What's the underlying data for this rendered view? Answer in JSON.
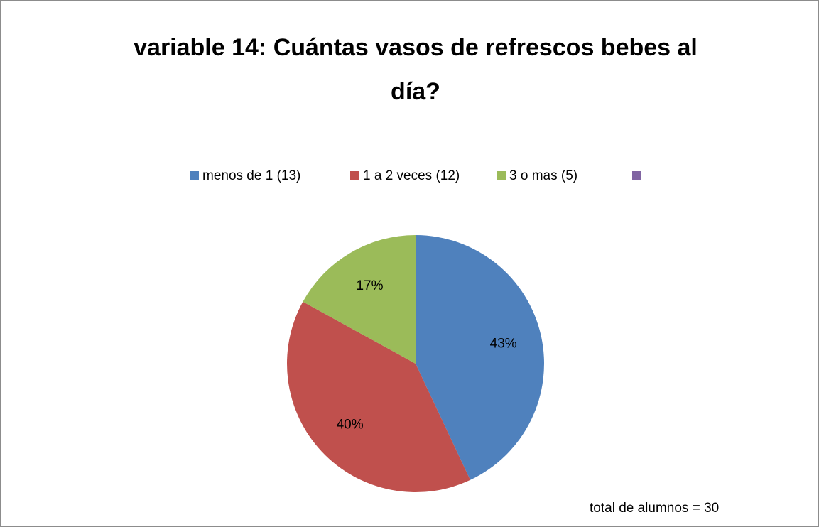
{
  "chart_data": {
    "type": "pie",
    "title": "variable 14: Cuántas vasos de refrescos bebes al día?",
    "categories": [
      "menos de 1 (13)",
      "1 a 2 veces (12)",
      "3 o mas (5)",
      null
    ],
    "values": [
      43,
      40,
      17,
      0
    ],
    "value_labels": [
      "43%",
      "40%",
      "17%",
      null
    ],
    "colors": [
      "#4f81bd",
      "#c0504d",
      "#9bbb59",
      "#8064a2"
    ],
    "legend": "top",
    "annotation": "total de alumnos = 30"
  }
}
